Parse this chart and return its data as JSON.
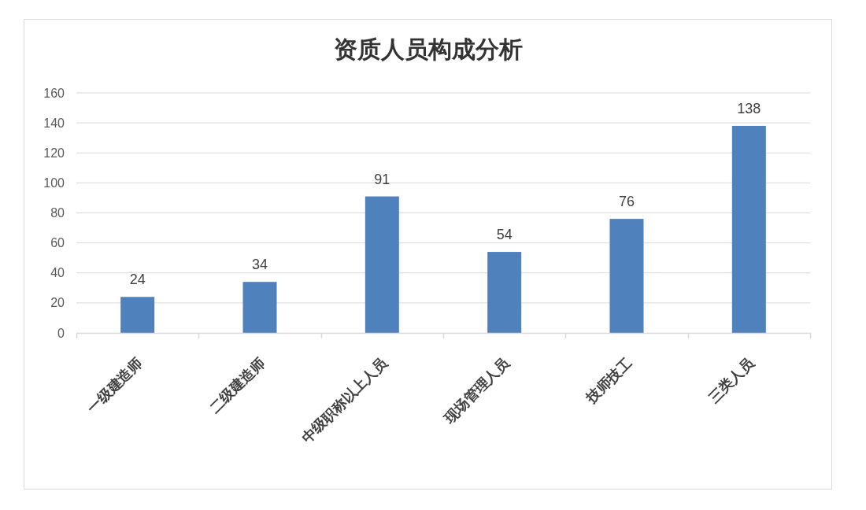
{
  "chart_data": {
    "type": "bar",
    "title": "资质人员构成分析",
    "categories": [
      "一级建造师",
      "二级建造师",
      "中级职称以上人员",
      "现场管理人员",
      "技师技工",
      "三类人员"
    ],
    "values": [
      24,
      34,
      91,
      54,
      76,
      138
    ],
    "color": "#4f81bd",
    "ylim": [
      0,
      160
    ],
    "yticks": [
      0,
      20,
      40,
      60,
      80,
      100,
      120,
      140,
      160
    ],
    "grid": "y",
    "data_labels": true
  }
}
